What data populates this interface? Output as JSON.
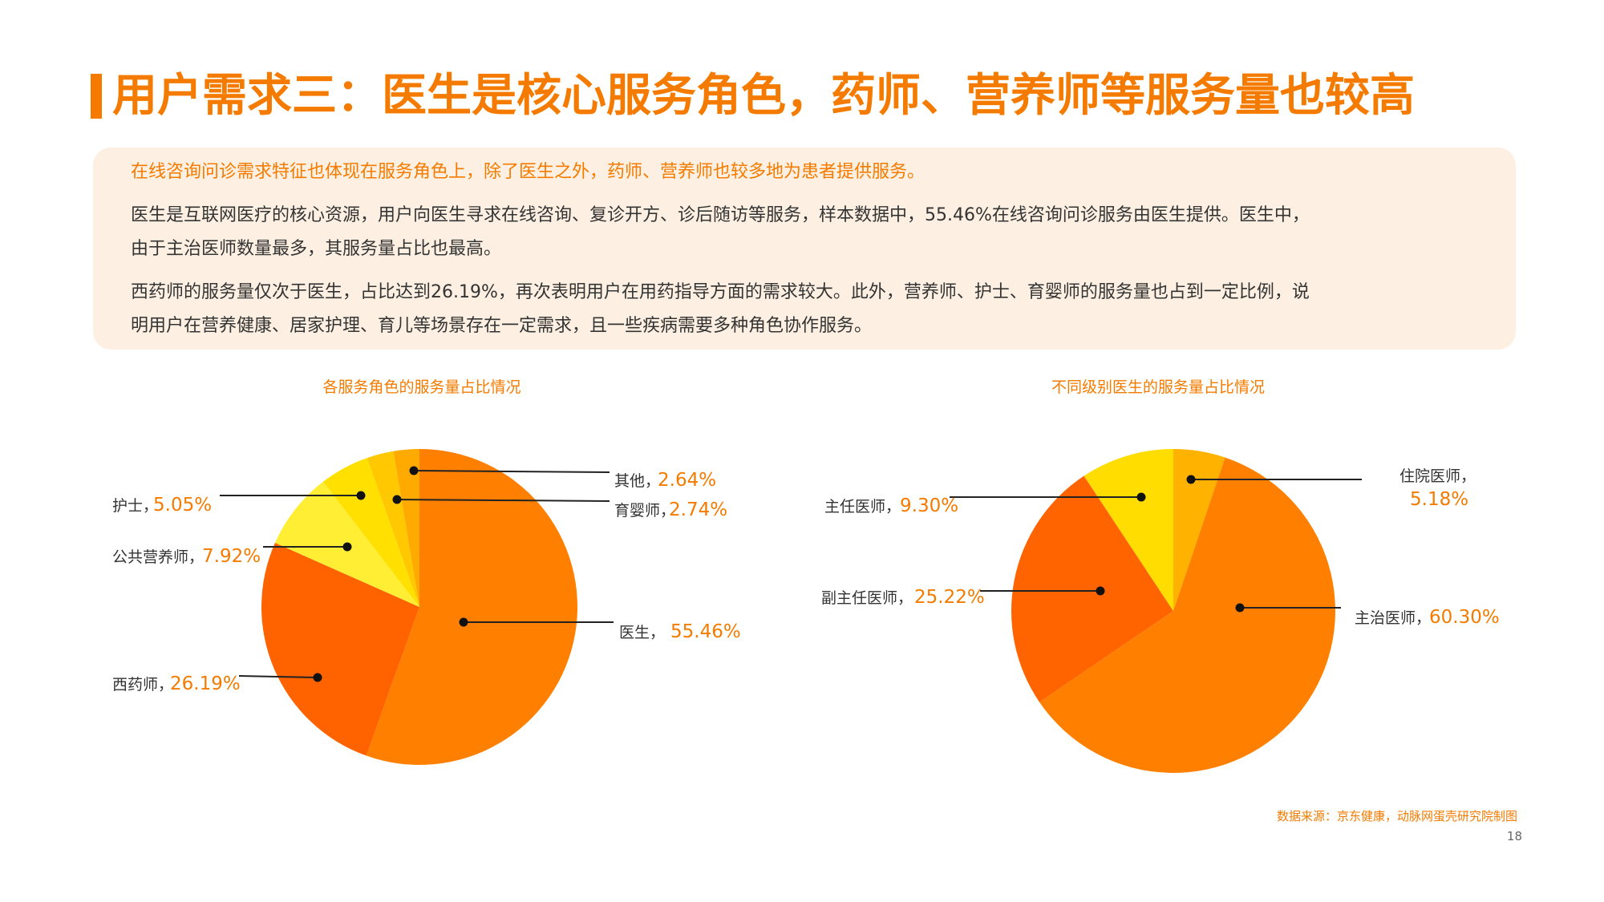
{
  "header": {
    "title": "用户需求三：医生是核心服务角色，药师、营养师等服务量也较高"
  },
  "summary": {
    "lead": "在线咨询问诊需求特征也体现在服务角色上，除了医生之外，药师、营养师也较多地为患者提供服务。",
    "para1_line1": "医生是互联网医疗的核心资源，用户向医生寻求在线咨询、复诊开方、诊后随访等服务，样本数据中，55.46%在线咨询问诊服务由医生提供。医生中，",
    "para1_line2": "由于主治医师数量最多，其服务量占比也最高。",
    "para2_line1": "西药师的服务量仅次于医生，占比达到26.19%，再次表明用户在用药指导方面的需求较大。此外，营养师、护士、育婴师的服务量也占到一定比例，说",
    "para2_line2": "明用户在营养健康、居家护理、育儿等场景存在一定需求，且一些疾病需要多种角色协作服务。"
  },
  "colors": {
    "accent": "#F47B00",
    "summary_bg": "#FDF0E2"
  },
  "chart_data": [
    {
      "type": "pie",
      "title": "各服务角色的服务量占比情况",
      "slices": [
        {
          "label": "医生",
          "value": 55.46,
          "value_label": "55.46%",
          "color": "#FF7F00"
        },
        {
          "label": "西药师",
          "value": 26.19,
          "value_label": "26.19%",
          "color": "#FF6300"
        },
        {
          "label": "公共营养师",
          "value": 7.92,
          "value_label": "7.92%",
          "color": "#FFEE33"
        },
        {
          "label": "护士",
          "value": 5.05,
          "value_label": "5.05%",
          "color": "#FFE000"
        },
        {
          "label": "育婴师",
          "value": 2.74,
          "value_label": "2.74%",
          "color": "#FFC800"
        },
        {
          "label": "其他",
          "value": 2.64,
          "value_label": "2.64%",
          "color": "#FFAA00"
        }
      ]
    },
    {
      "type": "pie",
      "title": "不同级别医生的服务量占比情况",
      "slices": [
        {
          "label": "住院医师",
          "value": 5.18,
          "value_label": "5.18%",
          "color": "#FFB300"
        },
        {
          "label": "主治医师",
          "value": 60.3,
          "value_label": "60.30%",
          "color": "#FF8000"
        },
        {
          "label": "副主任医师",
          "value": 25.22,
          "value_label": "25.22%",
          "color": "#FF6400"
        },
        {
          "label": "主任医师",
          "value": 9.3,
          "value_label": "9.30%",
          "color": "#FFDD00"
        }
      ]
    }
  ],
  "footer": {
    "source": "数据来源：京东健康，动脉网蛋壳研究院制图",
    "page_number": "18"
  }
}
